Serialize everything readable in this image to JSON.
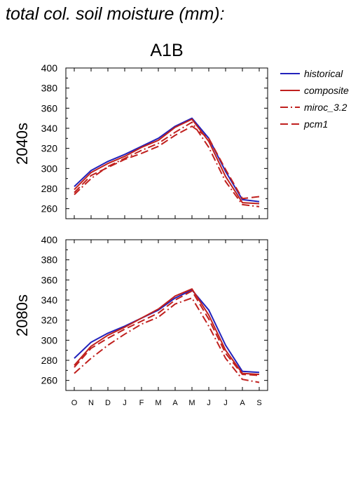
{
  "header": {
    "title": "total col. soil moisture (mm):",
    "scenario": "A1B"
  },
  "colors": {
    "historical": "#2222bb",
    "composite": "#c0201e",
    "miroc_3.2": "#c0201e",
    "pcm1": "#c0201e",
    "axis": "#000000"
  },
  "chart_data": [
    {
      "type": "line",
      "panel_label": "2040s",
      "x": [
        "O",
        "N",
        "D",
        "J",
        "F",
        "M",
        "A",
        "M",
        "J",
        "J",
        "A",
        "S"
      ],
      "ylim": [
        250,
        400
      ],
      "yticks": [
        260,
        280,
        300,
        320,
        340,
        360,
        380,
        400
      ],
      "show_xtick_labels": false,
      "legend": "right",
      "grid": false,
      "series": [
        {
          "name": "historical",
          "style": "solid",
          "values": [
            282,
            298,
            307,
            314,
            322,
            330,
            342,
            350,
            330,
            297,
            269,
            267
          ]
        },
        {
          "name": "composite",
          "style": "solid",
          "values": [
            279,
            296,
            305,
            312,
            321,
            328,
            341,
            349,
            327,
            292,
            266,
            265
          ]
        },
        {
          "name": "miroc_3.2",
          "style": "dashdot",
          "values": [
            274,
            290,
            302,
            310,
            318,
            325,
            336,
            346,
            321,
            287,
            264,
            262
          ]
        },
        {
          "name": "pcm1",
          "style": "dashed",
          "values": [
            276,
            293,
            301,
            309,
            315,
            322,
            333,
            342,
            330,
            299,
            270,
            272
          ]
        }
      ]
    },
    {
      "type": "line",
      "panel_label": "2080s",
      "x": [
        "O",
        "N",
        "D",
        "J",
        "F",
        "M",
        "A",
        "M",
        "J",
        "J",
        "A",
        "S"
      ],
      "ylim": [
        250,
        400
      ],
      "yticks": [
        260,
        280,
        300,
        320,
        340,
        360,
        380,
        400
      ],
      "show_xtick_labels": true,
      "grid": false,
      "series": [
        {
          "name": "historical",
          "style": "solid",
          "values": [
            282,
            298,
            307,
            314,
            322,
            330,
            342,
            350,
            330,
            295,
            269,
            268
          ]
        },
        {
          "name": "composite",
          "style": "solid",
          "values": [
            275,
            294,
            305,
            313,
            322,
            331,
            344,
            351,
            325,
            290,
            267,
            266
          ]
        },
        {
          "name": "miroc_3.2",
          "style": "dashdot",
          "values": [
            267,
            282,
            295,
            306,
            316,
            323,
            336,
            342,
            314,
            282,
            261,
            258
          ]
        },
        {
          "name": "pcm1",
          "style": "dashed",
          "values": [
            273,
            292,
            302,
            311,
            319,
            327,
            340,
            349,
            321,
            287,
            266,
            265
          ]
        }
      ]
    }
  ]
}
